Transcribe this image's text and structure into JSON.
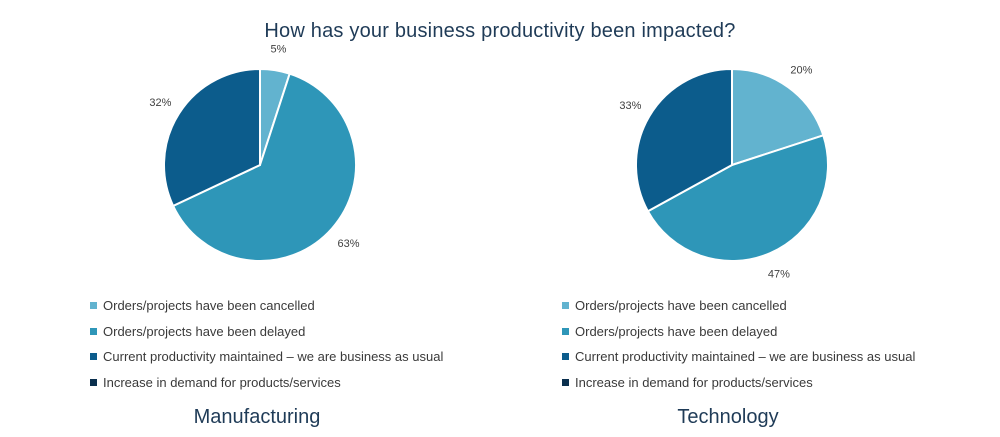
{
  "title": "How has your business productivity been impacted?",
  "legend": [
    {
      "label": "Orders/projects have been cancelled",
      "color": "#62b3cf"
    },
    {
      "label": "Orders/projects have been delayed",
      "color": "#2e96b8"
    },
    {
      "label": "Current productivity maintained – we are business as usual",
      "color": "#0c5c8c"
    },
    {
      "label": "Increase in demand for products/services",
      "color": "#0a2f4e"
    }
  ],
  "chart_data": [
    {
      "type": "pie",
      "title": "Manufacturing",
      "categories": [
        "Orders/projects have been cancelled",
        "Orders/projects have been delayed",
        "Current productivity maintained – we are business as usual",
        "Increase in demand for products/services"
      ],
      "values": [
        5,
        63,
        32,
        0
      ],
      "labels": [
        "5%",
        "63%",
        "32%",
        ""
      ],
      "colors": [
        "#62b3cf",
        "#2e96b8",
        "#0c5c8c",
        "#0a2f4e"
      ]
    },
    {
      "type": "pie",
      "title": "Technology",
      "categories": [
        "Orders/projects have been cancelled",
        "Orders/projects have been delayed",
        "Current productivity maintained – we are business as usual",
        "Increase in demand for products/services"
      ],
      "values": [
        20,
        47,
        33,
        0
      ],
      "labels": [
        "20%",
        "47%",
        "33%",
        ""
      ],
      "colors": [
        "#62b3cf",
        "#2e96b8",
        "#0c5c8c",
        "#0a2f4e"
      ]
    }
  ]
}
